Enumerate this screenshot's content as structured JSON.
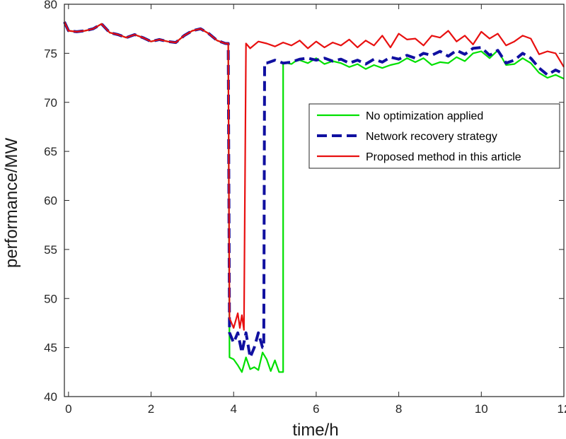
{
  "chart_data": {
    "type": "line",
    "xlabel": "time/h",
    "ylabel": "performance/MW",
    "xlim": [
      -0.1,
      12
    ],
    "ylim": [
      40,
      80
    ],
    "xticks": [
      0,
      2,
      4,
      6,
      8,
      10,
      12
    ],
    "yticks": [
      40,
      45,
      50,
      55,
      60,
      65,
      70,
      75,
      80
    ],
    "grid": false,
    "legend_position": "right",
    "series": [
      {
        "name": "No optimization applied",
        "color": "#00e000",
        "dash": "solid",
        "x": [
          -0.1,
          0.0,
          0.2,
          0.4,
          0.6,
          0.8,
          1.0,
          1.2,
          1.4,
          1.6,
          1.8,
          2.0,
          2.2,
          2.4,
          2.6,
          2.8,
          3.0,
          3.2,
          3.4,
          3.6,
          3.8,
          3.87,
          3.9,
          4.0,
          4.1,
          4.2,
          4.3,
          4.4,
          4.5,
          4.6,
          4.7,
          4.8,
          4.9,
          5.0,
          5.1,
          5.2,
          5.2,
          5.3,
          5.4,
          5.5,
          5.6,
          5.8,
          6.0,
          6.2,
          6.4,
          6.6,
          6.8,
          7.0,
          7.2,
          7.4,
          7.6,
          7.8,
          8.0,
          8.2,
          8.4,
          8.6,
          8.8,
          9.0,
          9.2,
          9.4,
          9.6,
          9.8,
          10.0,
          10.2,
          10.4,
          10.6,
          10.8,
          11.0,
          11.2,
          11.4,
          11.6,
          11.8,
          12.0
        ],
        "y": [
          78.2,
          77.3,
          77.2,
          77.3,
          77.5,
          78.0,
          77.1,
          76.9,
          76.6,
          76.9,
          76.6,
          76.2,
          76.4,
          76.2,
          76.1,
          76.8,
          77.3,
          77.5,
          77.0,
          76.3,
          76.0,
          76.0,
          44.0,
          43.8,
          43.2,
          42.5,
          44.0,
          42.8,
          43.0,
          42.7,
          44.5,
          43.8,
          42.6,
          43.7,
          42.5,
          42.5,
          74.0,
          74.0,
          73.9,
          74.2,
          74.3,
          74.0,
          74.5,
          73.9,
          74.2,
          74.0,
          73.6,
          73.9,
          73.4,
          73.8,
          73.5,
          73.8,
          74.0,
          74.5,
          74.1,
          74.5,
          73.8,
          74.1,
          74.0,
          74.6,
          74.2,
          75.0,
          75.2,
          74.5,
          75.3,
          73.8,
          73.9,
          74.5,
          74.0,
          73.0,
          72.5,
          72.8,
          72.4
        ]
      },
      {
        "name": "Network recovery strategy",
        "color": "#1010a0",
        "dash": "dashed",
        "x": [
          -0.1,
          0.0,
          0.2,
          0.4,
          0.6,
          0.8,
          1.0,
          1.2,
          1.4,
          1.6,
          1.8,
          2.0,
          2.2,
          2.4,
          2.6,
          2.8,
          3.0,
          3.2,
          3.4,
          3.6,
          3.8,
          3.87,
          3.9,
          4.0,
          4.1,
          4.2,
          4.3,
          4.4,
          4.5,
          4.6,
          4.7,
          4.73,
          4.75,
          4.8,
          5.0,
          5.2,
          5.4,
          5.6,
          5.8,
          6.0,
          6.2,
          6.4,
          6.6,
          6.8,
          7.0,
          7.2,
          7.4,
          7.6,
          7.8,
          8.0,
          8.2,
          8.4,
          8.6,
          8.8,
          9.0,
          9.2,
          9.4,
          9.6,
          9.8,
          10.0,
          10.2,
          10.4,
          10.6,
          10.8,
          11.0,
          11.2,
          11.4,
          11.6,
          11.8,
          12.0
        ],
        "y": [
          78.2,
          77.3,
          77.2,
          77.3,
          77.5,
          78.0,
          77.1,
          76.9,
          76.6,
          76.9,
          76.6,
          76.2,
          76.4,
          76.2,
          76.1,
          76.8,
          77.3,
          77.5,
          77.0,
          76.3,
          76.0,
          76.0,
          46.5,
          45.5,
          46.5,
          44.5,
          46.5,
          44.0,
          45.0,
          46.5,
          45.0,
          45.0,
          74.0,
          74.0,
          74.3,
          74.0,
          74.1,
          74.4,
          74.5,
          74.3,
          74.5,
          74.2,
          74.4,
          74.0,
          74.3,
          73.9,
          74.4,
          74.1,
          74.6,
          74.4,
          74.8,
          74.5,
          75.0,
          74.8,
          75.2,
          74.7,
          75.3,
          74.9,
          75.5,
          75.6,
          74.8,
          75.3,
          74.0,
          74.3,
          75.0,
          74.5,
          73.5,
          72.8,
          73.3,
          72.9
        ]
      },
      {
        "name": "Proposed method in this article",
        "color": "#e81010",
        "dash": "solid",
        "x": [
          -0.1,
          0.0,
          0.2,
          0.4,
          0.6,
          0.8,
          1.0,
          1.2,
          1.4,
          1.6,
          1.8,
          2.0,
          2.2,
          2.4,
          2.6,
          2.8,
          3.0,
          3.2,
          3.4,
          3.6,
          3.8,
          3.87,
          3.9,
          4.0,
          4.1,
          4.15,
          4.2,
          4.25,
          4.3,
          4.4,
          4.6,
          4.8,
          5.0,
          5.2,
          5.4,
          5.6,
          5.8,
          6.0,
          6.2,
          6.4,
          6.6,
          6.8,
          7.0,
          7.2,
          7.4,
          7.6,
          7.8,
          8.0,
          8.2,
          8.4,
          8.6,
          8.8,
          9.0,
          9.2,
          9.4,
          9.6,
          9.8,
          10.0,
          10.2,
          10.4,
          10.6,
          10.8,
          11.0,
          11.2,
          11.4,
          11.6,
          11.8,
          12.0
        ],
        "y": [
          78.2,
          77.3,
          77.2,
          77.3,
          77.5,
          78.0,
          77.1,
          76.9,
          76.6,
          76.9,
          76.6,
          76.2,
          76.4,
          76.2,
          76.1,
          76.8,
          77.3,
          77.5,
          77.0,
          76.3,
          76.0,
          76.0,
          48.0,
          47.0,
          48.5,
          47.0,
          48.3,
          46.8,
          76.0,
          75.5,
          76.2,
          76.0,
          75.7,
          76.1,
          75.8,
          76.3,
          75.5,
          76.2,
          75.6,
          76.1,
          75.8,
          76.4,
          75.6,
          76.3,
          75.8,
          76.8,
          75.6,
          77.0,
          76.4,
          76.5,
          75.8,
          76.8,
          76.6,
          77.3,
          76.2,
          76.8,
          75.9,
          77.2,
          76.5,
          77.0,
          75.8,
          76.2,
          76.8,
          76.5,
          74.9,
          75.2,
          75.0,
          73.6
        ]
      }
    ]
  }
}
